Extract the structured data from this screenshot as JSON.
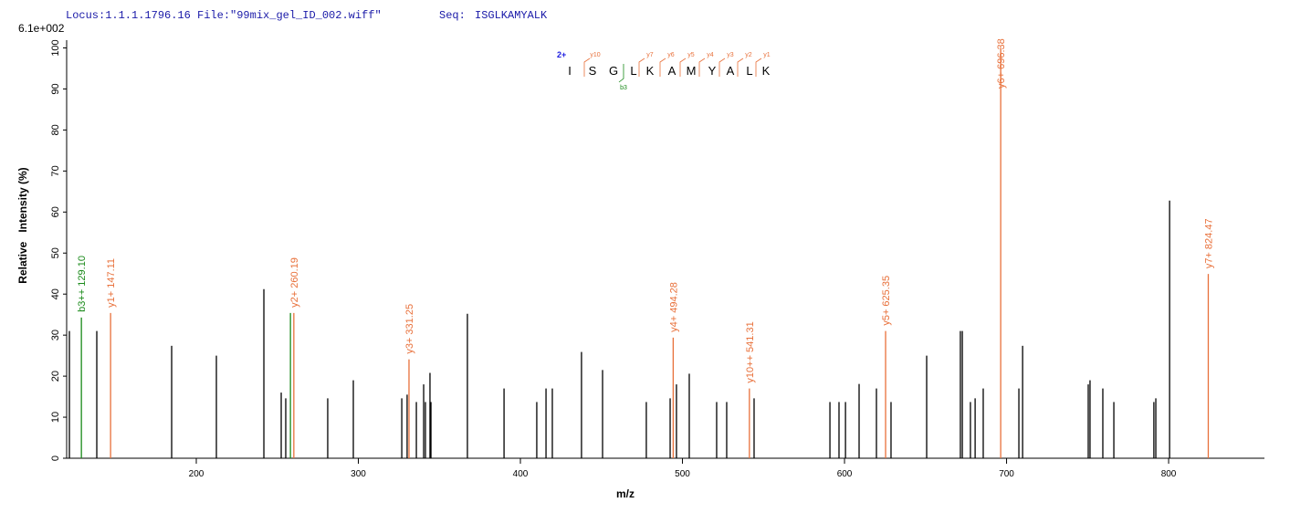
{
  "header": {
    "locus": "Locus:1.1.1.1796.16 File:\"99mix_gel_ID_002.wiff\"",
    "seq_label": "Seq:",
    "seq": "ISGLKAMYALK"
  },
  "chart_data": {
    "type": "spectrum",
    "scale_label": "6.1e+002",
    "xlabel": "m/z",
    "ylabel": "Relative   Intensity (%)",
    "xlim": [
      120,
      858
    ],
    "ylim": [
      0,
      101
    ],
    "xticks": [
      200,
      300,
      400,
      500,
      600,
      700,
      800
    ],
    "yticks": [
      0,
      10,
      20,
      30,
      40,
      50,
      60,
      70,
      80,
      90,
      100
    ],
    "sequence": {
      "charge": "2+",
      "residues": [
        "I",
        "S",
        "G",
        "L",
        "K",
        "A",
        "M",
        "Y",
        "A",
        "L",
        "K"
      ],
      "y_ions": [
        "y10",
        "y7",
        "y6",
        "y5",
        "y4",
        "y3",
        "y2",
        "y1"
      ],
      "b_ions": [
        "b3"
      ]
    },
    "series": [
      {
        "color": "#000000",
        "x": [
          121.7,
          138.6,
          184.8,
          212.4,
          241.7,
          252.4,
          255.2,
          281.1,
          296.9,
          326.8,
          330.1,
          335.8,
          340.3,
          341.4,
          344.2,
          344.8,
          367.3,
          389.9,
          410.1,
          415.8,
          419.7,
          437.7,
          450.7,
          477.7,
          492.4,
          496.3,
          504.2,
          521.1,
          527.3,
          544.2,
          591.0,
          596.6,
          600.6,
          609.0,
          619.7,
          628.7,
          650.7,
          671.5,
          672.7,
          677.7,
          680.6,
          685.6,
          707.6,
          709.9,
          750.4,
          751.5,
          759.4,
          766.2,
          790.9,
          792.1,
          800.6
        ],
        "values": [
          31,
          31,
          27.4,
          25,
          41.2,
          16,
          14.6,
          14.6,
          19,
          14.6,
          15.5,
          13.7,
          18,
          13.7,
          20.8,
          13.7,
          35.2,
          17,
          13.7,
          17,
          17,
          25.9,
          21.5,
          13.7,
          14.6,
          18,
          20.6,
          13.7,
          13.7,
          14.6,
          13.7,
          13.7,
          13.7,
          18.1,
          17,
          13.7,
          25,
          31,
          31,
          13.7,
          14.6,
          17,
          17,
          27.4,
          18,
          19,
          17,
          13.7,
          13.7,
          14.6,
          62.8
        ]
      },
      {
        "color": "#e8703a",
        "x": [
          147.11,
          260.19,
          331.25,
          494.28,
          541.31,
          625.35,
          696.38,
          824.47
        ],
        "values": [
          35.4,
          35.4,
          24.1,
          29.4,
          17,
          31,
          100,
          44.9
        ],
        "value_labels": [
          "y1+ 147.11",
          "y2+ 260.19",
          "y3+ 331.25",
          "y4+ 494.28",
          "y10++ 541.31",
          "y5+ 625.35",
          "y6+ 696.38",
          "y7+ 824.47"
        ]
      },
      {
        "color": "#1a8a1a",
        "x": [
          129.1,
          258.1
        ],
        "values": [
          34.3,
          35.4
        ],
        "value_labels": [
          "b3++ 129.10",
          null
        ]
      }
    ]
  }
}
